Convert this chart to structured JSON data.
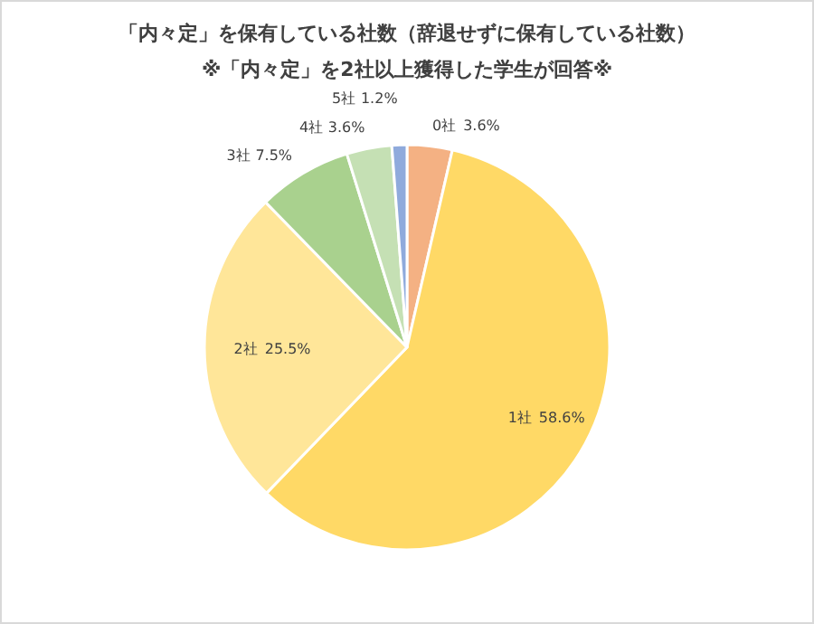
{
  "chart_data": {
    "type": "pie",
    "title": "「内々定」を保有している社数（辞退せずに保有している社数）",
    "subtitle": "※「内々定」を2社以上獲得した学生が回答※",
    "categories": [
      "0社",
      "1社",
      "2社",
      "3社",
      "4社",
      "5社"
    ],
    "values": [
      3.6,
      58.6,
      25.5,
      7.5,
      3.6,
      1.2
    ],
    "colors": [
      "#f4b183",
      "#ffd966",
      "#ffe699",
      "#a9d18e",
      "#c5e0b4",
      "#8faadc"
    ],
    "value_labels": [
      "3.6%",
      "58.6%",
      "25.5%",
      "7.5%",
      "3.6%",
      "1.2%"
    ]
  }
}
